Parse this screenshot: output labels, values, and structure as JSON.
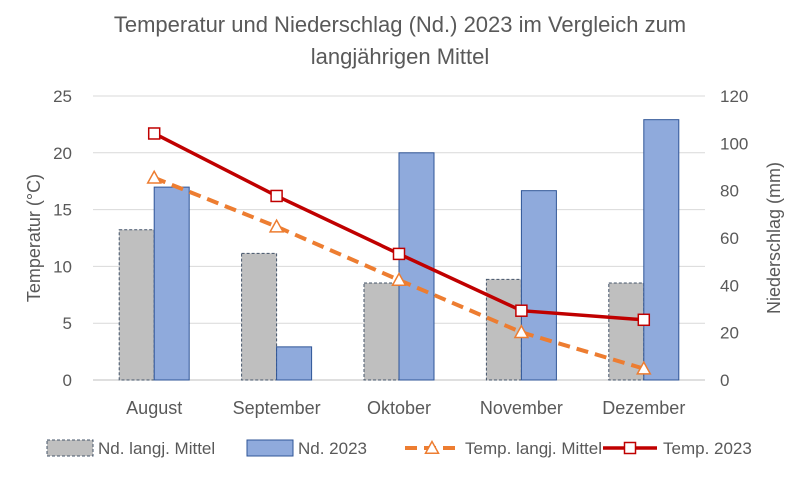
{
  "chart_data": {
    "title_line1": "Temperatur und Niederschlag (Nd.) 2023 im Vergleich zum",
    "title_line2": "langjährigen Mittel",
    "ylabel_left": "Temperatur (°C)",
    "ylabel_right": "Niederschlag (mm)",
    "categories": [
      "August",
      "September",
      "Oktober",
      "November",
      "Dezember"
    ],
    "left_axis": {
      "min": 0,
      "max": 25,
      "step": 5,
      "ticks": [
        "0",
        "5",
        "10",
        "15",
        "20",
        "25"
      ]
    },
    "right_axis": {
      "min": 0,
      "max": 120,
      "step": 20,
      "ticks": [
        "0",
        "20",
        "40",
        "60",
        "80",
        "100",
        "120"
      ]
    },
    "grid": true,
    "legend_position": "bottom",
    "series": [
      {
        "name": "Nd. langj. Mittel",
        "type": "bar",
        "axis": "right",
        "color": "#bfbfbf",
        "border": "#44546a",
        "values": [
          63.5,
          53.5,
          41,
          42.5,
          41
        ]
      },
      {
        "name": "Nd. 2023",
        "type": "bar",
        "axis": "right",
        "color": "#8faadc",
        "border": "#2f5597",
        "values": [
          81.5,
          14,
          96,
          80,
          110
        ]
      },
      {
        "name": "Temp. langj. Mittel",
        "type": "line",
        "axis": "left",
        "style": "dashed",
        "marker": "triangle",
        "color": "#ed7d31",
        "values": [
          17.8,
          13.5,
          8.8,
          4.2,
          1.0
        ]
      },
      {
        "name": "Temp. 2023",
        "type": "line",
        "axis": "left",
        "style": "solid",
        "marker": "square",
        "color": "#c00000",
        "values": [
          21.7,
          16.2,
          11.1,
          6.1,
          5.3
        ]
      }
    ]
  }
}
